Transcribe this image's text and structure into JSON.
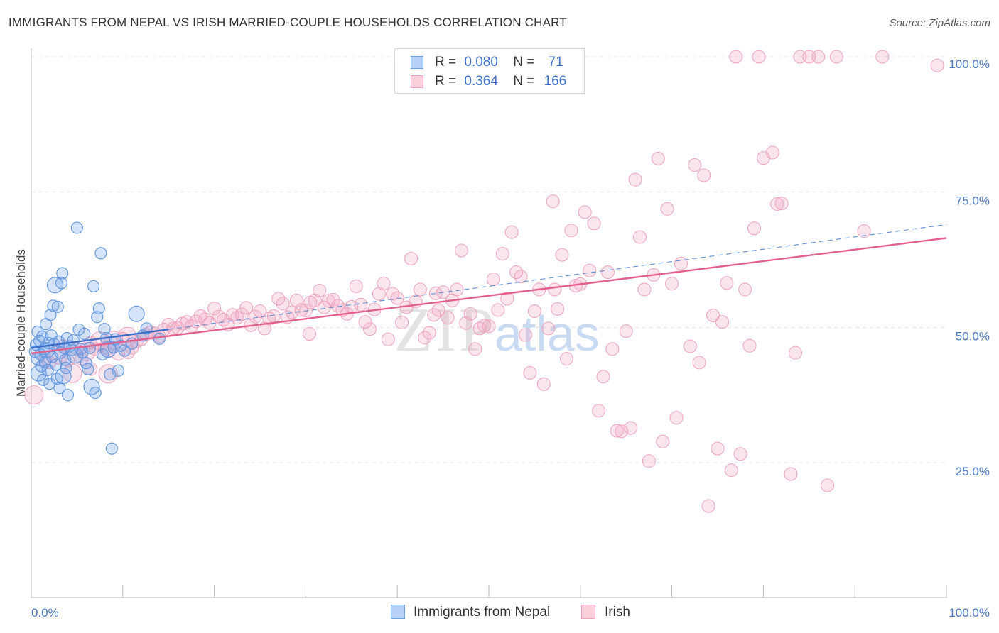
{
  "header": {
    "title": "IMMIGRANTS FROM NEPAL VS IRISH MARRIED-COUPLE HOUSEHOLDS CORRELATION CHART",
    "source": "Source: ZipAtlas.com"
  },
  "watermark": {
    "part1": "ZIP",
    "part2": "atlas"
  },
  "legend": {
    "rows": [
      {
        "r_label": "R =",
        "r_value": "0.080",
        "n_label": "N =",
        "n_value": "71"
      },
      {
        "r_label": "R =",
        "r_value": "0.364",
        "n_label": "N =",
        "n_value": "166"
      }
    ]
  },
  "bottom_legend": {
    "series1": "Immigrants from Nepal",
    "series2": "Irish"
  },
  "chart_data": {
    "type": "scatter",
    "title": "IMMIGRANTS FROM NEPAL VS IRISH MARRIED-COUPLE HOUSEHOLDS CORRELATION CHART",
    "xlabel": "",
    "ylabel": "Married-couple Households",
    "xlim": [
      0,
      100
    ],
    "ylim": [
      0,
      102
    ],
    "x_tick_labels": [
      "0.0%",
      "100.0%"
    ],
    "y_ticks": [
      25,
      50,
      75,
      100
    ],
    "y_tick_labels": [
      "25.0%",
      "50.0%",
      "75.0%",
      "100.0%"
    ],
    "grid": true,
    "legend_position": "top-center",
    "colors": {
      "nepal": "#6fa3e8",
      "nepal_line": "#3d6fc8",
      "irish": "#f2a2bd",
      "irish_line": "#e2608b"
    },
    "series": [
      {
        "name": "Immigrants from Nepal",
        "r": 0.08,
        "n": 71,
        "trend": {
          "x": [
            0,
            100
          ],
          "y": [
            46.2,
            69.0
          ],
          "solid_until_x": 15
        },
        "points": [
          [
            0.4,
            45.5
          ],
          [
            0.5,
            46.8
          ],
          [
            0.6,
            44.2
          ],
          [
            0.7,
            49.2
          ],
          [
            0.8,
            41.5
          ],
          [
            0.9,
            47.5
          ],
          [
            1.0,
            45.0
          ],
          [
            1.1,
            42.8
          ],
          [
            1.2,
            48.3
          ],
          [
            1.3,
            40.3
          ],
          [
            1.4,
            46.0
          ],
          [
            1.5,
            43.6
          ],
          [
            1.6,
            50.6
          ],
          [
            1.7,
            45.8
          ],
          [
            1.8,
            42.1
          ],
          [
            1.9,
            47.1
          ],
          [
            2.0,
            39.6
          ],
          [
            2.1,
            52.3
          ],
          [
            2.2,
            48.5
          ],
          [
            2.3,
            44.5
          ],
          [
            2.4,
            54.0
          ],
          [
            2.5,
            46.9
          ],
          [
            2.6,
            57.8
          ],
          [
            2.7,
            43.1
          ],
          [
            2.8,
            40.5
          ],
          [
            2.9,
            53.8
          ],
          [
            3.0,
            47.4
          ],
          [
            3.1,
            38.8
          ],
          [
            3.2,
            45.3
          ],
          [
            3.3,
            58.2
          ],
          [
            3.4,
            60.0
          ],
          [
            3.5,
            41.0
          ],
          [
            3.6,
            46.2
          ],
          [
            3.7,
            44.0
          ],
          [
            3.8,
            42.5
          ],
          [
            3.9,
            48.0
          ],
          [
            4.0,
            37.5
          ],
          [
            4.2,
            46.5
          ],
          [
            4.4,
            45.8
          ],
          [
            4.6,
            47.6
          ],
          [
            4.8,
            44.8
          ],
          [
            5.0,
            68.4
          ],
          [
            5.2,
            49.6
          ],
          [
            5.4,
            46.0
          ],
          [
            5.6,
            45.4
          ],
          [
            5.8,
            48.8
          ],
          [
            6.0,
            43.4
          ],
          [
            6.2,
            42.3
          ],
          [
            6.4,
            46.2
          ],
          [
            6.6,
            39.0
          ],
          [
            6.8,
            57.6
          ],
          [
            7.0,
            37.9
          ],
          [
            7.2,
            51.9
          ],
          [
            7.4,
            53.5
          ],
          [
            7.6,
            63.7
          ],
          [
            7.8,
            45.0
          ],
          [
            8.0,
            49.7
          ],
          [
            8.2,
            48.0
          ],
          [
            8.4,
            45.9
          ],
          [
            8.6,
            41.3
          ],
          [
            8.8,
            27.6
          ],
          [
            9.0,
            46.3
          ],
          [
            9.2,
            47.8
          ],
          [
            9.5,
            42.0
          ],
          [
            9.8,
            46.6
          ],
          [
            10.2,
            45.7
          ],
          [
            11.0,
            47.0
          ],
          [
            11.5,
            52.5
          ],
          [
            12.2,
            48.5
          ],
          [
            12.6,
            49.8
          ],
          [
            14.0,
            47.9
          ]
        ]
      },
      {
        "name": "Irish",
        "r": 0.364,
        "n": 166,
        "trend": {
          "x": [
            0,
            100
          ],
          "y": [
            45.2,
            66.5
          ]
        },
        "points": [
          [
            0.3,
            37.5
          ],
          [
            1.5,
            44.0
          ],
          [
            2.0,
            43.5
          ],
          [
            3.0,
            44.9
          ],
          [
            3.5,
            46.5
          ],
          [
            4.0,
            43.9
          ],
          [
            4.5,
            41.5
          ],
          [
            5.0,
            46.0
          ],
          [
            5.5,
            44.2
          ],
          [
            6.0,
            45.5
          ],
          [
            6.5,
            47.2
          ],
          [
            7.0,
            46.0
          ],
          [
            7.5,
            47.5
          ],
          [
            8.0,
            46.2
          ],
          [
            8.5,
            45.8
          ],
          [
            9.0,
            47.6
          ],
          [
            9.5,
            45.1
          ],
          [
            10.0,
            47.9
          ],
          [
            10.5,
            48.3
          ],
          [
            11.0,
            46.2
          ],
          [
            11.5,
            47.4
          ],
          [
            12.0,
            47.8
          ],
          [
            12.5,
            48.7
          ],
          [
            13.0,
            49.1
          ],
          [
            13.5,
            48.9
          ],
          [
            14.0,
            48.3
          ],
          [
            14.5,
            49.6
          ],
          [
            15.0,
            50.5
          ],
          [
            15.5,
            49.8
          ],
          [
            16.0,
            49.9
          ],
          [
            16.5,
            50.7
          ],
          [
            17.0,
            51.0
          ],
          [
            17.5,
            50.2
          ],
          [
            18.0,
            51.1
          ],
          [
            18.5,
            52.1
          ],
          [
            19.0,
            51.5
          ],
          [
            19.5,
            50.8
          ],
          [
            20.0,
            53.5
          ],
          [
            20.5,
            52.0
          ],
          [
            21.0,
            51.4
          ],
          [
            21.5,
            50.5
          ],
          [
            22.0,
            52.3
          ],
          [
            22.5,
            51.8
          ],
          [
            23.0,
            52.4
          ],
          [
            23.5,
            53.6
          ],
          [
            24.0,
            50.4
          ],
          [
            24.5,
            52.0
          ],
          [
            25.0,
            53.0
          ],
          [
            25.5,
            49.8
          ],
          [
            26.0,
            51.6
          ],
          [
            26.5,
            52.1
          ],
          [
            27.0,
            55.3
          ],
          [
            27.5,
            54.4
          ],
          [
            28.0,
            51.9
          ],
          [
            28.5,
            52.8
          ],
          [
            29.0,
            55.0
          ],
          [
            29.5,
            53.2
          ],
          [
            30.0,
            53.1
          ],
          [
            30.5,
            54.6
          ],
          [
            31.0,
            55.0
          ],
          [
            31.5,
            56.8
          ],
          [
            32.0,
            53.7
          ],
          [
            32.5,
            54.9
          ],
          [
            33.0,
            55.1
          ],
          [
            33.5,
            54.0
          ],
          [
            34.0,
            53.2
          ],
          [
            34.5,
            52.5
          ],
          [
            35.0,
            53.8
          ],
          [
            35.5,
            57.6
          ],
          [
            36.0,
            54.2
          ],
          [
            36.5,
            51.0
          ],
          [
            37.0,
            49.7
          ],
          [
            37.5,
            53.3
          ],
          [
            38.0,
            56.2
          ],
          [
            38.5,
            58.1
          ],
          [
            39.0,
            47.8
          ],
          [
            39.5,
            56.2
          ],
          [
            40.0,
            55.4
          ],
          [
            40.5,
            50.9
          ],
          [
            41.0,
            53.7
          ],
          [
            41.5,
            62.7
          ],
          [
            42.0,
            54.8
          ],
          [
            42.5,
            57.0
          ],
          [
            43.0,
            48.1
          ],
          [
            43.5,
            49.0
          ],
          [
            44.0,
            52.3
          ],
          [
            44.5,
            53.2
          ],
          [
            45.0,
            56.5
          ],
          [
            45.5,
            51.8
          ],
          [
            46.0,
            55.0
          ],
          [
            46.5,
            57.0
          ],
          [
            47.0,
            64.2
          ],
          [
            47.5,
            50.8
          ],
          [
            48.0,
            52.5
          ],
          [
            48.5,
            46.0
          ],
          [
            49.0,
            49.8
          ],
          [
            49.5,
            50.3
          ],
          [
            50.0,
            50.2
          ],
          [
            50.5,
            58.9
          ],
          [
            51.0,
            53.2
          ],
          [
            51.5,
            63.6
          ],
          [
            52.0,
            55.3
          ],
          [
            52.5,
            67.6
          ],
          [
            53.0,
            60.2
          ],
          [
            53.5,
            59.4
          ],
          [
            54.0,
            48.6
          ],
          [
            54.5,
            41.6
          ],
          [
            55.0,
            53.0
          ],
          [
            55.5,
            57.0
          ],
          [
            56.0,
            39.5
          ],
          [
            56.5,
            49.8
          ],
          [
            57.0,
            73.3
          ],
          [
            57.5,
            53.4
          ],
          [
            58.0,
            63.4
          ],
          [
            58.5,
            44.2
          ],
          [
            59.0,
            67.9
          ],
          [
            59.5,
            57.7
          ],
          [
            60.0,
            58.0
          ],
          [
            60.5,
            71.3
          ],
          [
            61.0,
            60.5
          ],
          [
            61.5,
            69.2
          ],
          [
            62.0,
            34.6
          ],
          [
            62.5,
            40.9
          ],
          [
            63.0,
            60.2
          ],
          [
            63.5,
            46.0
          ],
          [
            64.0,
            30.9
          ],
          [
            64.5,
            30.8
          ],
          [
            65.0,
            49.3
          ],
          [
            65.5,
            31.4
          ],
          [
            66.0,
            77.3
          ],
          [
            66.5,
            66.7
          ],
          [
            67.0,
            57.0
          ],
          [
            67.5,
            25.3
          ],
          [
            68.0,
            59.7
          ],
          [
            68.5,
            81.2
          ],
          [
            69.0,
            28.9
          ],
          [
            69.5,
            71.9
          ],
          [
            70.0,
            58.1
          ],
          [
            70.5,
            33.3
          ],
          [
            71.0,
            61.8
          ],
          [
            72.0,
            46.5
          ],
          [
            72.5,
            80.0
          ],
          [
            73.0,
            43.5
          ],
          [
            73.5,
            78.1
          ],
          [
            74.0,
            17.0
          ],
          [
            74.5,
            52.2
          ],
          [
            75.0,
            27.6
          ],
          [
            75.5,
            51.0
          ],
          [
            76.0,
            58.2
          ],
          [
            76.5,
            23.6
          ],
          [
            77.0,
            100.0
          ],
          [
            77.5,
            26.6
          ],
          [
            78.0,
            57.0
          ],
          [
            78.5,
            46.6
          ],
          [
            79.0,
            68.3
          ],
          [
            79.5,
            100.0
          ],
          [
            80.0,
            81.3
          ],
          [
            81.0,
            82.3
          ],
          [
            81.5,
            72.8
          ],
          [
            82.0,
            72.9
          ],
          [
            83.0,
            22.9
          ],
          [
            83.5,
            45.3
          ],
          [
            84.0,
            100.0
          ],
          [
            85.0,
            100.0
          ],
          [
            86.0,
            100.0
          ],
          [
            87.0,
            20.8
          ],
          [
            88.0,
            100.0
          ],
          [
            91.0,
            67.8
          ],
          [
            93.0,
            100.0
          ],
          [
            99.0,
            98.4
          ],
          [
            57.2,
            57.0
          ],
          [
            44.2,
            56.3
          ],
          [
            30.4,
            48.8
          ],
          [
            10.6,
            45.4
          ],
          [
            8.4,
            41.4
          ],
          [
            6.5,
            42.3
          ]
        ]
      }
    ]
  }
}
